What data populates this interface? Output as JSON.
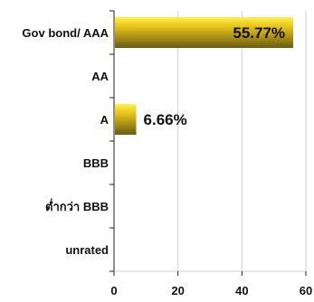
{
  "chart_data": {
    "type": "bar",
    "orientation": "horizontal",
    "categories": [
      "Gov bond/ AAA",
      "AA",
      "A",
      "BBB",
      "ต่ำกว่า BBB",
      "unrated"
    ],
    "values": [
      55.77,
      0,
      6.66,
      0,
      0,
      0
    ],
    "data_labels": [
      "55.77%",
      "",
      "6.66%",
      "",
      "",
      ""
    ],
    "xlim": [
      0,
      60
    ],
    "xticks": [
      0,
      20,
      40,
      60
    ],
    "xtick_labels": [
      "0",
      "20",
      "40",
      "60"
    ],
    "grid": true,
    "legend": "none",
    "bar_color_light": "#fff04a",
    "bar_color_mid": "#e8c51c",
    "bar_color_dark": "#6b5a10"
  }
}
